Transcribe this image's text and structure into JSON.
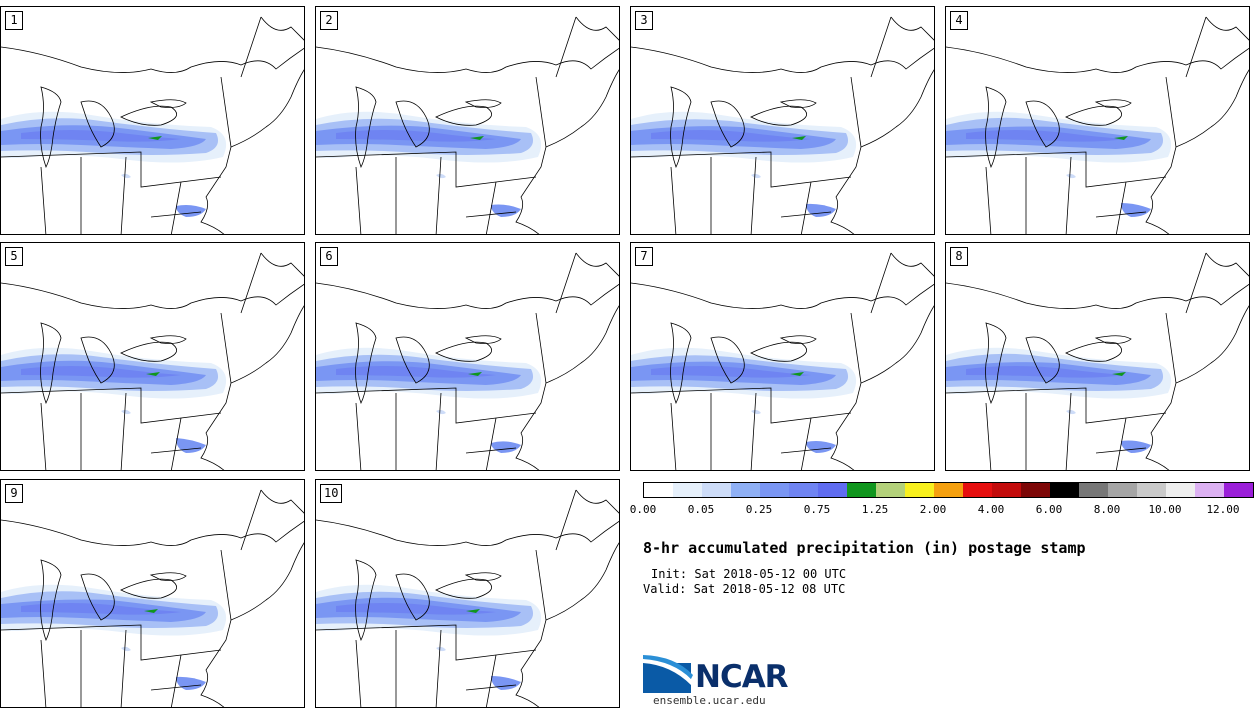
{
  "panels": [
    {
      "label": "1"
    },
    {
      "label": "2"
    },
    {
      "label": "3"
    },
    {
      "label": "4"
    },
    {
      "label": "5"
    },
    {
      "label": "6"
    },
    {
      "label": "7"
    },
    {
      "label": "8"
    },
    {
      "label": "9"
    },
    {
      "label": "10"
    }
  ],
  "legend": {
    "colors": [
      "#ffffff",
      "#e6f0fb",
      "#cddcf8",
      "#8fb0f5",
      "#7a96f3",
      "#6f84f2",
      "#5f6cf0",
      "#10961e",
      "#b3d17a",
      "#f8f01e",
      "#f5a00f",
      "#e60f0f",
      "#c30b0b",
      "#7d0707",
      "#000000",
      "#777777",
      "#a5a5a5",
      "#cacaca",
      "#eeeeee",
      "#dcb1f2",
      "#9b1fd9"
    ],
    "tick_labels": [
      "0.00",
      "0.05",
      "0.25",
      "0.75",
      "1.25",
      "2.00",
      "4.00",
      "6.00",
      "8.00",
      "10.00",
      "12.00"
    ]
  },
  "title": "8-hr accumulated precipitation (in) postage stamp",
  "init_text": "Init: Sat 2018-05-12 00 UTC",
  "valid_text": "Valid: Sat 2018-05-12 08 UTC",
  "logo": {
    "text": "NCAR",
    "url_text": "ensemble.ucar.edu"
  }
}
